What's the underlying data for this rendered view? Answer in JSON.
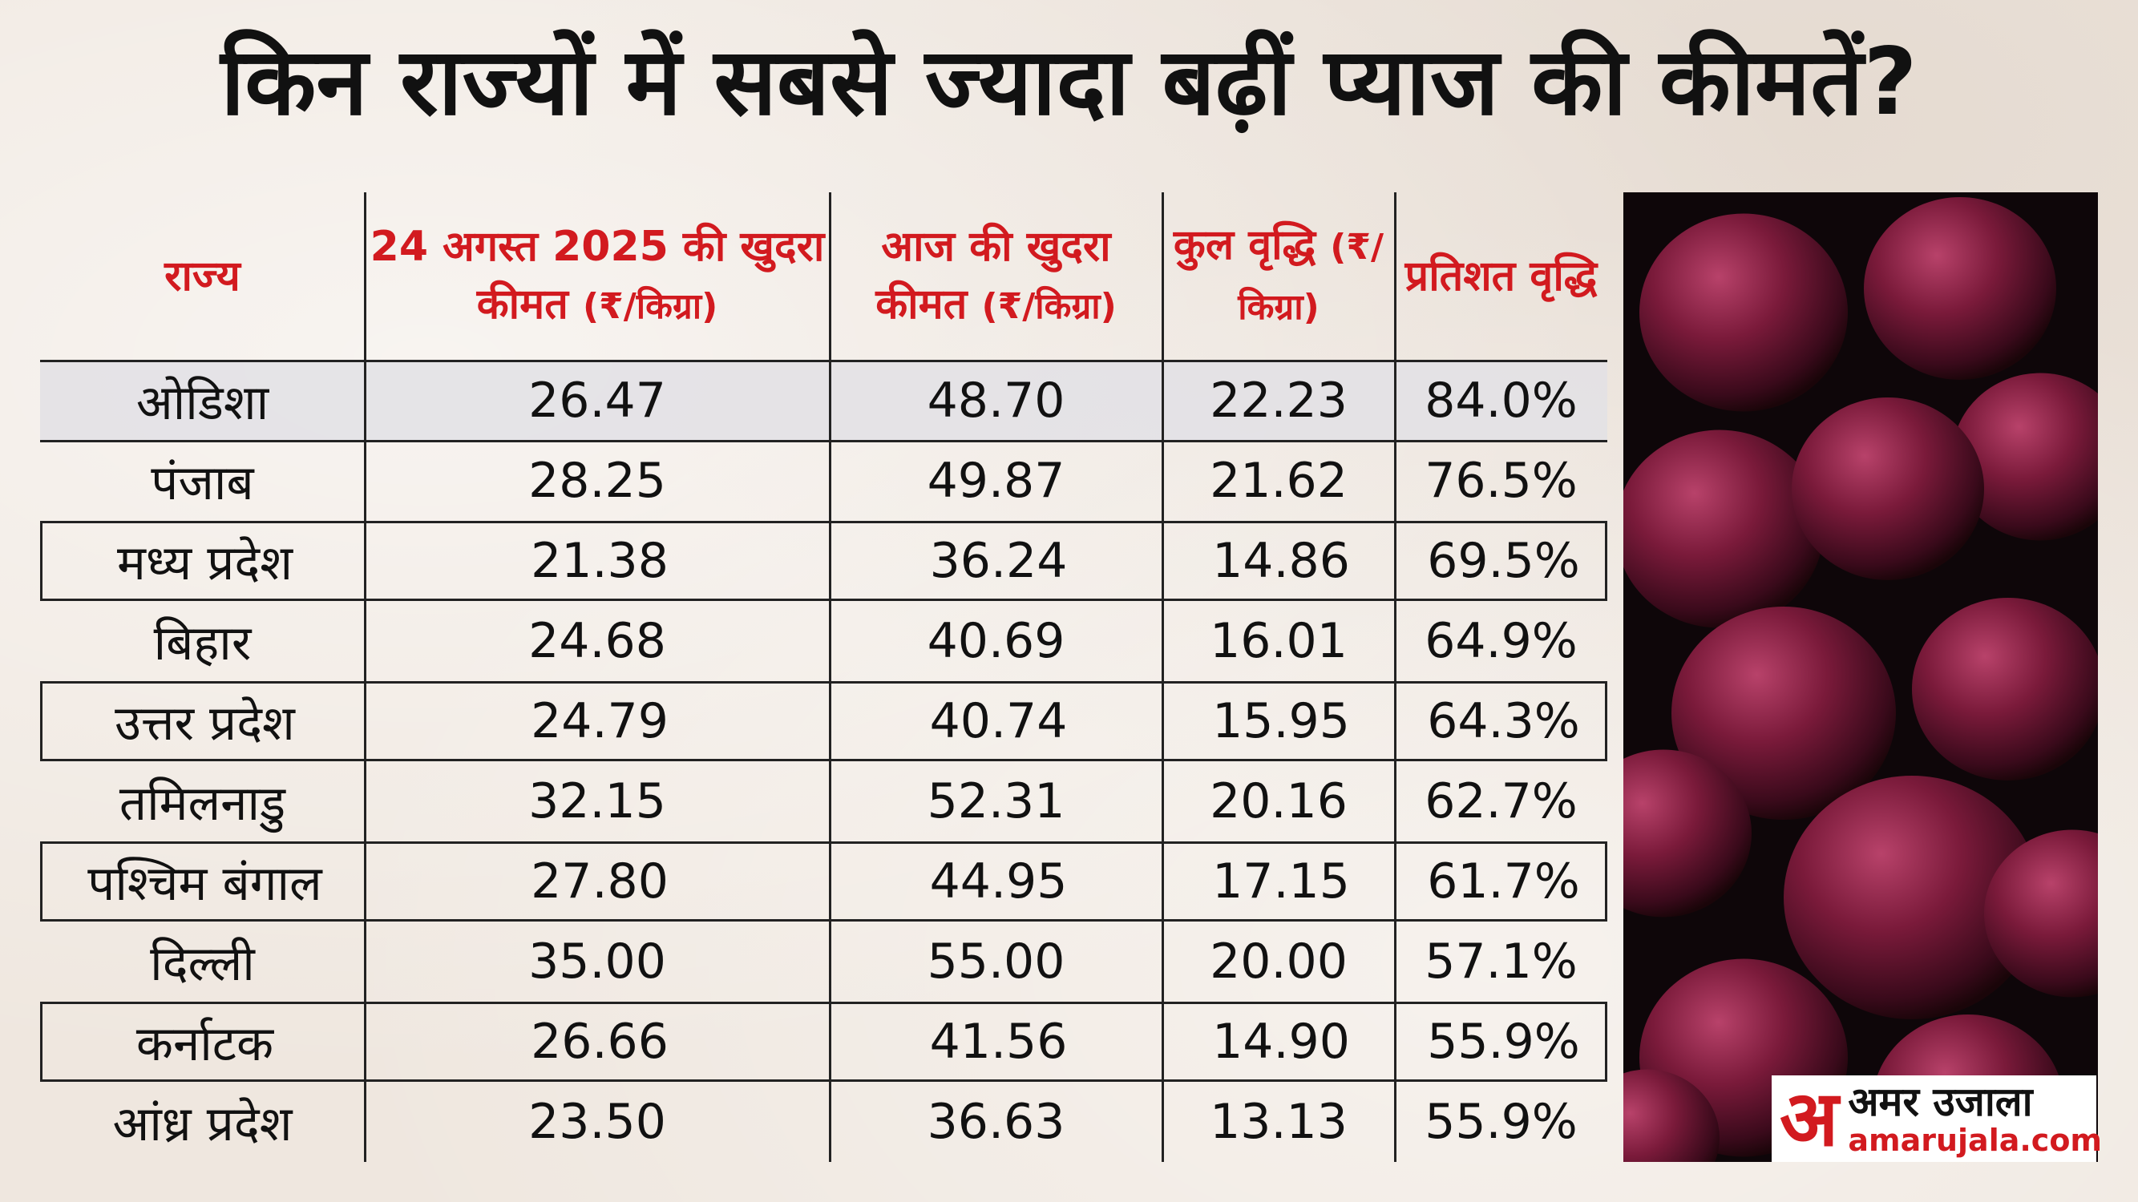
{
  "title": "किन राज्यों में सबसे ज्यादा बढ़ीं प्याज की कीमतें?",
  "colors": {
    "header_red": "#d21a1f",
    "text": "#111111",
    "row_shade": "#e2e0e5"
  },
  "chart_data": {
    "type": "table",
    "title": "किन राज्यों में सबसे ज्यादा बढ़ीं प्याज की कीमतें?",
    "columns": [
      {
        "main": "राज्य",
        "unit": ""
      },
      {
        "main": "24 अगस्त 2025 की खुदरा कीमत",
        "unit": "(₹/किग्रा)"
      },
      {
        "main": "आज की खुदरा कीमत",
        "unit": "(₹/किग्रा)"
      },
      {
        "main": "कुल वृद्धि",
        "unit": "(₹/किग्रा)"
      },
      {
        "main": "प्रतिशत वृद्धि",
        "unit": ""
      }
    ],
    "rows": [
      [
        "ओडिशा",
        "26.47",
        "48.70",
        "22.23",
        "84.0%"
      ],
      [
        "पंजाब",
        "28.25",
        "49.87",
        "21.62",
        "76.5%"
      ],
      [
        "मध्य प्रदेश",
        "21.38",
        "36.24",
        "14.86",
        "69.5%"
      ],
      [
        "बिहार",
        "24.68",
        "40.69",
        "16.01",
        "64.9%"
      ],
      [
        "उत्तर प्रदेश",
        "24.79",
        "40.74",
        "15.95",
        "64.3%"
      ],
      [
        "तमिलनाडु",
        "32.15",
        "52.31",
        "20.16",
        "62.7%"
      ],
      [
        "पश्चिम बंगाल",
        "27.80",
        "44.95",
        "17.15",
        "61.7%"
      ],
      [
        "दिल्ली",
        "35.00",
        "55.00",
        "20.00",
        "57.1%"
      ],
      [
        "कर्नाटक",
        "26.66",
        "41.56",
        "14.90",
        "55.9%"
      ],
      [
        "आंध्र प्रदेश",
        "23.50",
        "36.63",
        "13.13",
        "55.9%"
      ]
    ]
  },
  "brand": {
    "mark": "अ",
    "name": "अमर उजाला",
    "url": "amarujala.com"
  }
}
